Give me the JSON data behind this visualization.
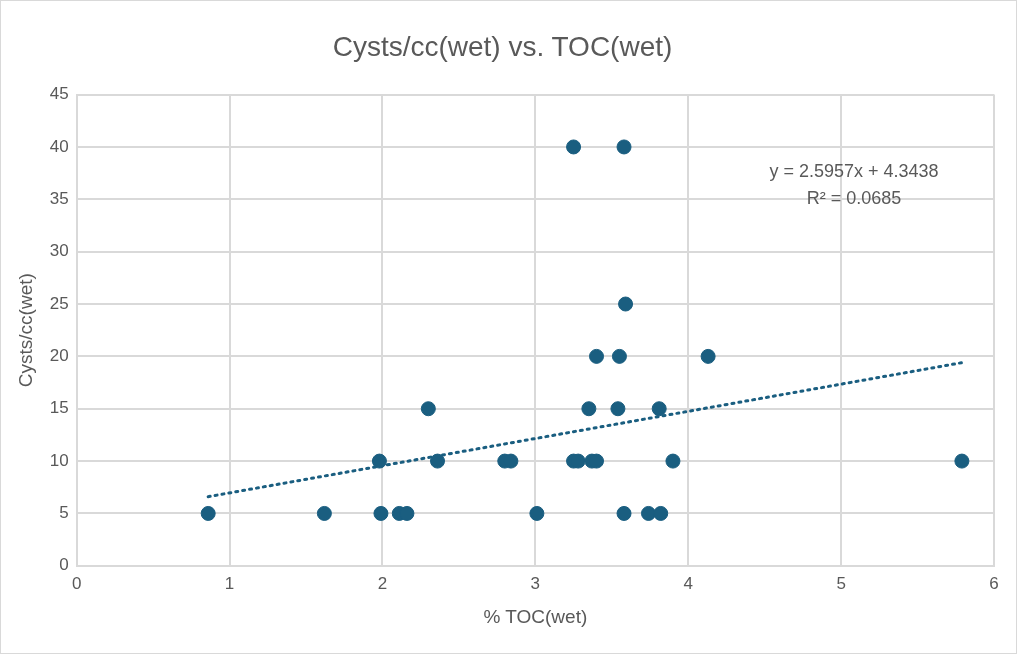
{
  "chart_data": {
    "type": "scatter",
    "title": "Cysts/cc(wet) vs. TOC(wet)",
    "xlabel": "% TOC(wet)",
    "ylabel": "Cysts/cc(wet)",
    "xlim": [
      0,
      6
    ],
    "xticks": [
      0,
      1,
      2,
      3,
      4,
      5,
      6
    ],
    "ylim": [
      0,
      45
    ],
    "yticks": [
      0,
      5,
      10,
      15,
      20,
      25,
      30,
      35,
      40,
      45
    ],
    "grid": true,
    "legend": false,
    "marker": "circle",
    "series": [
      {
        "color": "#1a5e80",
        "x": [
          0.86,
          1.62,
          1.99,
          2.11,
          2.16,
          3.01,
          3.58,
          3.74,
          3.82,
          1.98,
          2.36,
          2.8,
          2.84,
          3.25,
          3.28,
          3.37,
          3.4,
          3.9,
          5.79,
          2.3,
          3.35,
          3.54,
          3.81,
          3.4,
          3.55,
          4.13,
          3.59,
          3.25,
          3.58
        ],
        "values": [
          5,
          5,
          5,
          5,
          5,
          5,
          5,
          5,
          5,
          10,
          10,
          10,
          10,
          10,
          10,
          10,
          10,
          10,
          10,
          15,
          15,
          15,
          15,
          20,
          20,
          20,
          25,
          40,
          40
        ]
      },
      {
        "type": "line",
        "color": "#1a5e80",
        "marker": "none",
        "line_style": "dotted",
        "x": [
          0.86,
          5.79
        ],
        "values": [
          6.6,
          19.4
        ]
      }
    ],
    "annotations": [
      "y = 2.5957x + 4.3438",
      "R² = 0.0685"
    ]
  }
}
